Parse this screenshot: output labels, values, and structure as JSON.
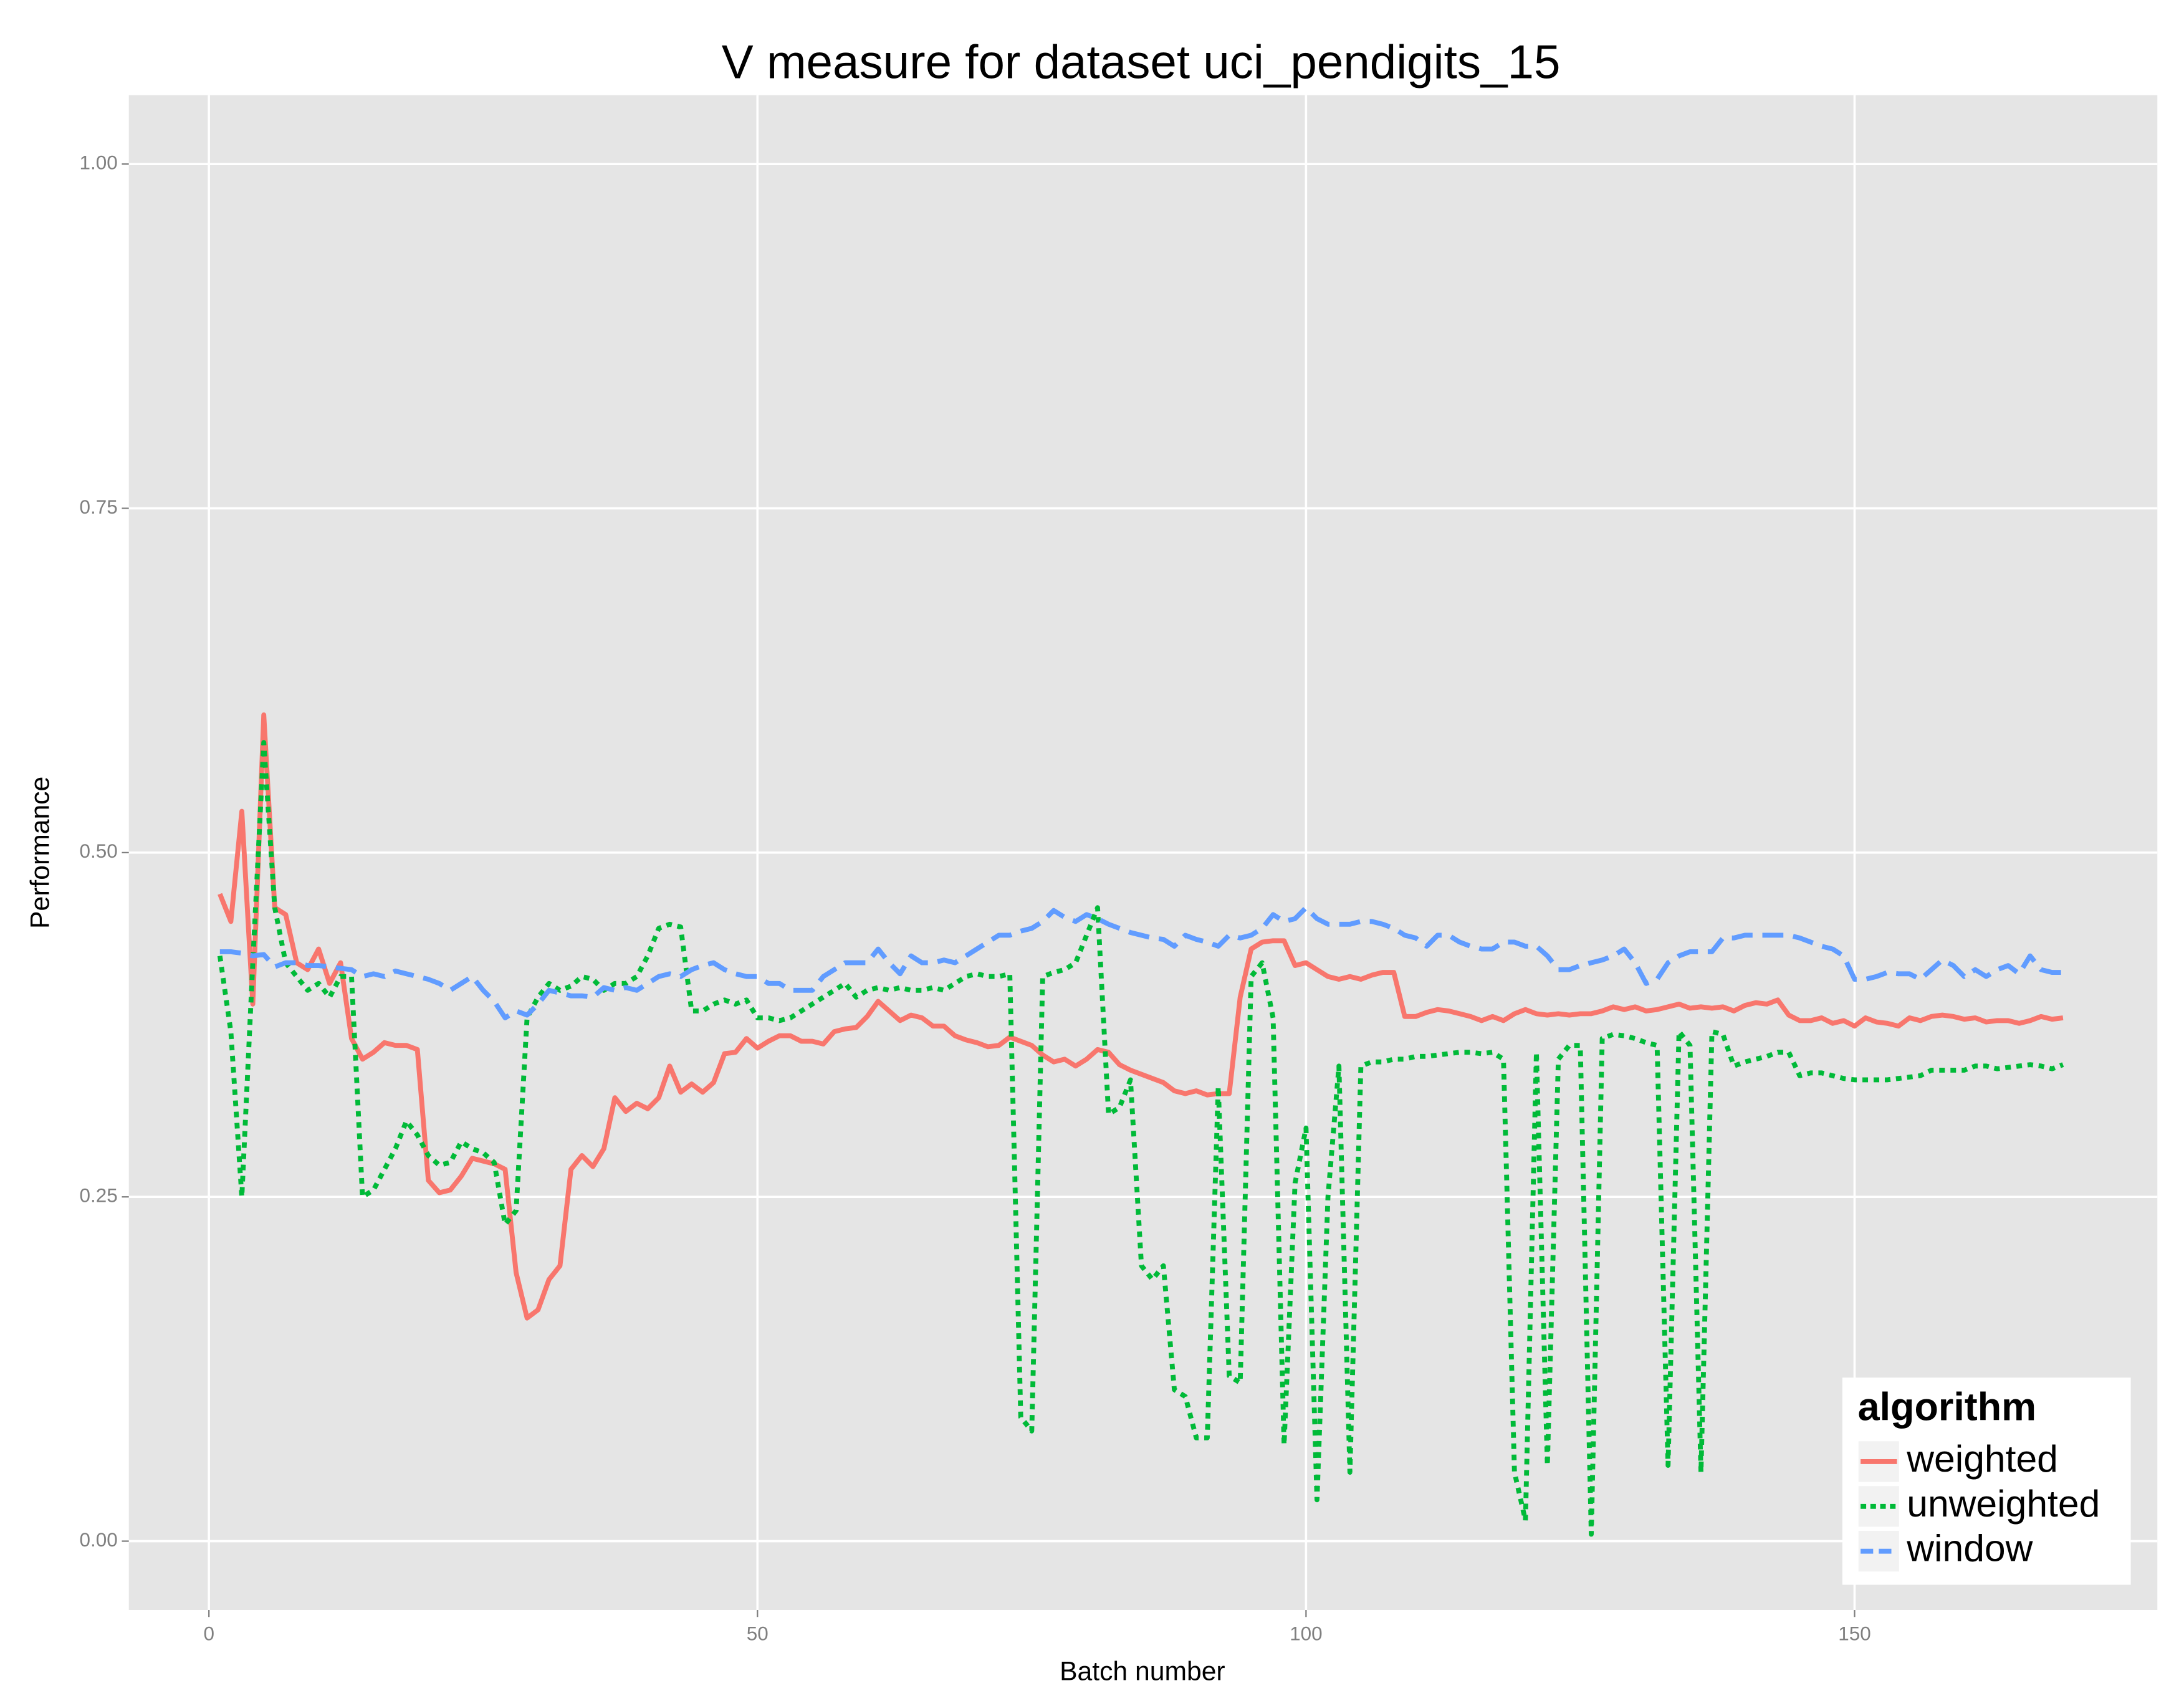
{
  "chart_data": {
    "type": "line",
    "title": "V measure for dataset uci_pendigits_15",
    "x_label": "Batch number",
    "y_label": "Performance",
    "x": [
      1,
      2,
      3,
      4,
      5,
      6,
      7,
      8,
      9,
      10,
      11,
      12,
      13,
      14,
      15,
      16,
      17,
      18,
      19,
      20,
      21,
      22,
      23,
      24,
      25,
      26,
      27,
      28,
      29,
      30,
      31,
      32,
      33,
      34,
      35,
      36,
      37,
      38,
      39,
      40,
      41,
      42,
      43,
      44,
      45,
      46,
      47,
      48,
      49,
      50,
      51,
      52,
      53,
      54,
      55,
      56,
      57,
      58,
      59,
      60,
      61,
      62,
      63,
      64,
      65,
      66,
      67,
      68,
      69,
      70,
      71,
      72,
      73,
      74,
      75,
      76,
      77,
      78,
      79,
      80,
      81,
      82,
      83,
      84,
      85,
      86,
      87,
      88,
      89,
      90,
      91,
      92,
      93,
      94,
      95,
      96,
      97,
      98,
      99,
      100,
      101,
      102,
      103,
      104,
      105,
      106,
      107,
      108,
      109,
      110,
      111,
      112,
      113,
      114,
      115,
      116,
      117,
      118,
      119,
      120,
      121,
      122,
      123,
      124,
      125,
      126,
      127,
      128,
      129,
      130,
      131,
      132,
      133,
      134,
      135,
      136,
      137,
      138,
      139,
      140,
      141,
      142,
      143,
      144,
      145,
      146,
      147,
      148,
      149,
      150,
      151,
      152,
      153,
      154,
      155,
      156,
      157,
      158,
      159,
      160,
      161,
      162,
      163,
      164,
      165,
      166,
      167,
      168,
      169
    ],
    "series": [
      {
        "name": "weighted",
        "color": "#F8766D",
        "linestyle": "solid",
        "values": [
          0.47,
          0.45,
          0.53,
          0.39,
          0.6,
          0.46,
          0.455,
          0.42,
          0.415,
          0.43,
          0.405,
          0.42,
          0.365,
          0.35,
          0.355,
          0.362,
          0.36,
          0.36,
          0.357,
          0.262,
          0.253,
          0.255,
          0.265,
          0.278,
          0.276,
          0.274,
          0.27,
          0.195,
          0.162,
          0.168,
          0.19,
          0.2,
          0.27,
          0.28,
          0.272,
          0.285,
          0.322,
          0.312,
          0.318,
          0.314,
          0.322,
          0.345,
          0.326,
          0.332,
          0.326,
          0.333,
          0.354,
          0.355,
          0.365,
          0.358,
          0.363,
          0.367,
          0.367,
          0.363,
          0.363,
          0.361,
          0.37,
          0.372,
          0.373,
          0.381,
          0.392,
          0.385,
          0.378,
          0.382,
          0.38,
          0.374,
          0.374,
          0.367,
          0.364,
          0.362,
          0.359,
          0.36,
          0.366,
          0.363,
          0.36,
          0.353,
          0.348,
          0.35,
          0.345,
          0.35,
          0.357,
          0.355,
          0.346,
          0.342,
          0.339,
          0.336,
          0.333,
          0.327,
          0.325,
          0.327,
          0.324,
          0.325,
          0.325,
          0.395,
          0.43,
          0.435,
          0.436,
          0.436,
          0.418,
          0.42,
          0.415,
          0.41,
          0.408,
          0.41,
          0.408,
          0.411,
          0.413,
          0.413,
          0.381,
          0.381,
          0.384,
          0.386,
          0.385,
          0.383,
          0.381,
          0.378,
          0.381,
          0.378,
          0.383,
          0.386,
          0.383,
          0.382,
          0.383,
          0.382,
          0.383,
          0.383,
          0.385,
          0.388,
          0.386,
          0.388,
          0.385,
          0.386,
          0.388,
          0.39,
          0.387,
          0.388,
          0.387,
          0.388,
          0.385,
          0.389,
          0.391,
          0.39,
          0.393,
          0.382,
          0.378,
          0.378,
          0.38,
          0.376,
          0.378,
          0.374,
          0.38,
          0.377,
          0.376,
          0.374,
          0.38,
          0.378,
          0.381,
          0.382,
          0.381,
          0.379,
          0.38,
          0.377,
          0.378,
          0.378,
          0.376,
          0.378,
          0.381,
          0.379,
          0.38
        ]
      },
      {
        "name": "unweighted",
        "color": "#00BA38",
        "linestyle": "dotted",
        "values": [
          0.425,
          0.37,
          0.25,
          0.42,
          0.58,
          0.46,
          0.42,
          0.41,
          0.4,
          0.405,
          0.395,
          0.41,
          0.41,
          0.25,
          0.255,
          0.27,
          0.285,
          0.305,
          0.295,
          0.28,
          0.273,
          0.275,
          0.29,
          0.285,
          0.282,
          0.275,
          0.23,
          0.24,
          0.38,
          0.395,
          0.405,
          0.4,
          0.403,
          0.41,
          0.408,
          0.4,
          0.405,
          0.405,
          0.41,
          0.425,
          0.445,
          0.448,
          0.446,
          0.385,
          0.385,
          0.39,
          0.393,
          0.39,
          0.393,
          0.38,
          0.38,
          0.378,
          0.38,
          0.385,
          0.39,
          0.395,
          0.4,
          0.405,
          0.395,
          0.4,
          0.402,
          0.4,
          0.402,
          0.4,
          0.4,
          0.402,
          0.4,
          0.405,
          0.41,
          0.412,
          0.41,
          0.41,
          0.412,
          0.09,
          0.08,
          0.41,
          0.413,
          0.415,
          0.42,
          0.44,
          0.46,
          0.31,
          0.315,
          0.335,
          0.2,
          0.19,
          0.2,
          0.11,
          0.105,
          0.075,
          0.075,
          0.33,
          0.12,
          0.115,
          0.41,
          0.42,
          0.38,
          0.07,
          0.26,
          0.3,
          0.03,
          0.25,
          0.345,
          0.05,
          0.345,
          0.348,
          0.348,
          0.35,
          0.35,
          0.352,
          0.352,
          0.353,
          0.354,
          0.355,
          0.355,
          0.354,
          0.355,
          0.35,
          0.05,
          0.015,
          0.355,
          0.055,
          0.35,
          0.36,
          0.36,
          0.005,
          0.365,
          0.368,
          0.367,
          0.365,
          0.362,
          0.36,
          0.055,
          0.37,
          0.36,
          0.05,
          0.37,
          0.368,
          0.345,
          0.348,
          0.35,
          0.352,
          0.355,
          0.355,
          0.338,
          0.34,
          0.34,
          0.338,
          0.336,
          0.335,
          0.335,
          0.335,
          0.335,
          0.336,
          0.337,
          0.338,
          0.342,
          0.342,
          0.342,
          0.342,
          0.345,
          0.345,
          0.343,
          0.344,
          0.345,
          0.346,
          0.345,
          0.343,
          0.346
        ]
      },
      {
        "name": "window",
        "color": "#619CFF",
        "linestyle": "dashed",
        "values": [
          0.428,
          0.428,
          0.427,
          0.425,
          0.426,
          0.417,
          0.42,
          0.42,
          0.418,
          0.418,
          0.417,
          0.416,
          0.415,
          0.41,
          0.412,
          0.41,
          0.414,
          0.412,
          0.41,
          0.408,
          0.405,
          0.4,
          0.405,
          0.41,
          0.4,
          0.392,
          0.38,
          0.385,
          0.382,
          0.39,
          0.4,
          0.398,
          0.396,
          0.396,
          0.395,
          0.402,
          0.4,
          0.402,
          0.4,
          0.405,
          0.41,
          0.412,
          0.41,
          0.415,
          0.418,
          0.42,
          0.415,
          0.412,
          0.41,
          0.41,
          0.405,
          0.405,
          0.4,
          0.4,
          0.4,
          0.41,
          0.415,
          0.42,
          0.42,
          0.42,
          0.43,
          0.42,
          0.412,
          0.425,
          0.42,
          0.42,
          0.422,
          0.42,
          0.425,
          0.43,
          0.435,
          0.44,
          0.44,
          0.443,
          0.445,
          0.45,
          0.458,
          0.453,
          0.45,
          0.455,
          0.452,
          0.448,
          0.445,
          0.442,
          0.44,
          0.438,
          0.437,
          0.432,
          0.44,
          0.437,
          0.435,
          0.432,
          0.44,
          0.438,
          0.44,
          0.445,
          0.455,
          0.45,
          0.452,
          0.46,
          0.452,
          0.448,
          0.448,
          0.448,
          0.45,
          0.45,
          0.448,
          0.445,
          0.44,
          0.438,
          0.432,
          0.44,
          0.44,
          0.435,
          0.432,
          0.43,
          0.43,
          0.435,
          0.435,
          0.432,
          0.432,
          0.425,
          0.415,
          0.415,
          0.418,
          0.42,
          0.422,
          0.425,
          0.43,
          0.42,
          0.405,
          0.408,
          0.42,
          0.425,
          0.428,
          0.428,
          0.428,
          0.438,
          0.438,
          0.44,
          0.44,
          0.44,
          0.44,
          0.44,
          0.438,
          0.435,
          0.432,
          0.43,
          0.425,
          0.408,
          0.408,
          0.41,
          0.413,
          0.412,
          0.412,
          0.408,
          0.415,
          0.422,
          0.418,
          0.41,
          0.415,
          0.41,
          0.415,
          0.418,
          0.412,
          0.425,
          0.415,
          0.413,
          0.413
        ]
      }
    ],
    "xlim": [
      -7.3,
      177.6
    ],
    "ylim": [
      -0.05,
      1.05
    ],
    "xticks": [
      0,
      50,
      100,
      150
    ],
    "yticks": [
      {
        "value": 0,
        "label": "0.00"
      },
      {
        "value": 0.25,
        "label": "0.25"
      },
      {
        "value": 0.5,
        "label": "0.50"
      },
      {
        "value": 0.75,
        "label": "0.75"
      },
      {
        "value": 1,
        "label": "1.00"
      }
    ],
    "grid": true,
    "legend_title": "algorithm",
    "legend_position": "bottom-right"
  }
}
